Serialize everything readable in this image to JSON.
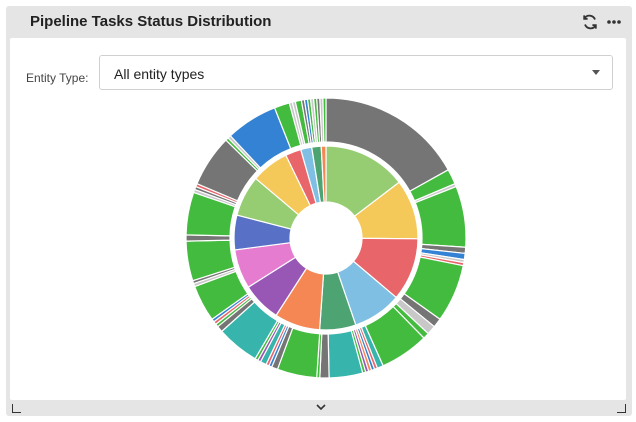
{
  "widget": {
    "title": "Pipeline Tasks Status Distribution",
    "refresh_icon": "refresh-icon",
    "more_icon": "more-options-icon"
  },
  "filter": {
    "label": "Entity Type:",
    "selected": "All entity types"
  },
  "footer": {
    "expand_icon": "chevron-down-icon"
  },
  "colors": {
    "grey": "#757575",
    "green": "#42bb3e",
    "blue": "#3382d4",
    "light_green": "#96cd73",
    "yellow": "#f5c85a",
    "red": "#e8656a",
    "light_blue": "#7fbfe3",
    "teal": "#37b5ac",
    "mid_green": "#4da472",
    "orange": "#f58754",
    "purple": "#9857b5",
    "pink": "#e67ccf",
    "indigo": "#5871c7",
    "silver": "#c8c8c8"
  },
  "chart_data": {
    "type": "pie",
    "variant": "sunburst",
    "inner_ring": [
      {
        "color": "light_green",
        "value": 53
      },
      {
        "color": "yellow",
        "value": 38
      },
      {
        "color": "red",
        "value": 40
      },
      {
        "color": "light_blue",
        "value": 31
      },
      {
        "color": "mid_green",
        "value": 23
      },
      {
        "color": "orange",
        "value": 29
      },
      {
        "color": "purple",
        "value": 25
      },
      {
        "color": "pink",
        "value": 25
      },
      {
        "color": "indigo",
        "value": 22
      },
      {
        "color": "light_green",
        "value": 26
      },
      {
        "color": "yellow",
        "value": 24
      },
      {
        "color": "red",
        "value": 10
      },
      {
        "color": "light_blue",
        "value": 7
      },
      {
        "color": "mid_green",
        "value": 6
      },
      {
        "color": "orange",
        "value": 3
      }
    ],
    "outer_ring": [
      {
        "color": "grey",
        "value": 48
      },
      {
        "color": "green",
        "value": 5
      },
      {
        "color": "silver",
        "value": 1
      },
      {
        "color": "green",
        "value": 20
      },
      {
        "color": "grey",
        "value": 2
      },
      {
        "color": "blue",
        "value": 2
      },
      {
        "color": "silver",
        "value": 1
      },
      {
        "color": "red",
        "value": 1
      },
      {
        "color": "green",
        "value": 19
      },
      {
        "color": "grey",
        "value": 3
      },
      {
        "color": "silver",
        "value": 3
      },
      {
        "color": "green",
        "value": 2
      },
      {
        "color": "green",
        "value": 16
      },
      {
        "color": "teal",
        "value": 2
      },
      {
        "color": "red",
        "value": 1
      },
      {
        "color": "blue",
        "value": 1
      },
      {
        "color": "orange",
        "value": 1
      },
      {
        "color": "purple",
        "value": 1
      },
      {
        "color": "green",
        "value": 1
      },
      {
        "color": "teal",
        "value": 11
      },
      {
        "color": "grey",
        "value": 3
      },
      {
        "color": "green",
        "value": 1
      },
      {
        "color": "green",
        "value": 13
      },
      {
        "color": "grey",
        "value": 2
      },
      {
        "color": "blue",
        "value": 1
      },
      {
        "color": "red",
        "value": 1
      },
      {
        "color": "teal",
        "value": 2
      },
      {
        "color": "purple",
        "value": 1
      },
      {
        "color": "green",
        "value": 1
      },
      {
        "color": "teal",
        "value": 14
      },
      {
        "color": "grey",
        "value": 2
      },
      {
        "color": "green",
        "value": 1
      },
      {
        "color": "red",
        "value": 1
      },
      {
        "color": "blue",
        "value": 1
      },
      {
        "color": "green",
        "value": 12
      },
      {
        "color": "silver",
        "value": 1
      },
      {
        "color": "grey",
        "value": 1
      },
      {
        "color": "green",
        "value": 13
      },
      {
        "color": "grey",
        "value": 2
      },
      {
        "color": "green",
        "value": 14
      },
      {
        "color": "silver",
        "value": 1
      },
      {
        "color": "grey",
        "value": 1
      },
      {
        "color": "red",
        "value": 1
      },
      {
        "color": "grey",
        "value": 17
      },
      {
        "color": "green",
        "value": 1
      },
      {
        "color": "silver",
        "value": 1
      },
      {
        "color": "blue",
        "value": 17
      },
      {
        "color": "green",
        "value": 5
      },
      {
        "color": "silver",
        "value": 1
      },
      {
        "color": "silver",
        "value": 1
      },
      {
        "color": "green",
        "value": 2
      },
      {
        "color": "grey",
        "value": 1
      },
      {
        "color": "blue",
        "value": 1
      },
      {
        "color": "green",
        "value": 1
      },
      {
        "color": "silver",
        "value": 1
      },
      {
        "color": "green",
        "value": 1
      },
      {
        "color": "grey",
        "value": 1
      },
      {
        "color": "silver",
        "value": 1
      },
      {
        "color": "green",
        "value": 1
      }
    ]
  }
}
